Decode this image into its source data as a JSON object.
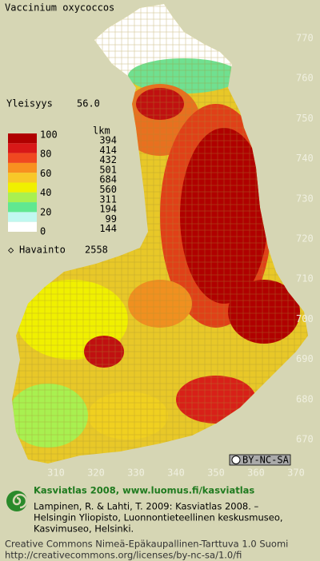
{
  "title": "Vaccinium oxycoccos",
  "frequency": {
    "label": "Yleisyys",
    "value": "56.0"
  },
  "legend": {
    "scale_labels": [
      100,
      80,
      60,
      40,
      20,
      0
    ],
    "count_header": "lkm",
    "counts": [
      394,
      414,
      432,
      501,
      684,
      560,
      311,
      194,
      99,
      144
    ]
  },
  "observations": {
    "label": "Havainto",
    "value": 2558
  },
  "grid_labels": {
    "north": [
      770,
      760,
      750,
      740,
      730,
      720,
      710,
      700,
      690,
      680,
      670
    ],
    "east": [
      310,
      320,
      330,
      340,
      350,
      360,
      370
    ]
  },
  "license_badge": "BY-NC-SA",
  "footer": {
    "heading": "Kasviatlas 2008, www.luomus.fi/kasviatlas",
    "citation": [
      "Lampinen, R. & Lahti, T. 2009: Kasviatlas 2008. –",
      "Helsingin Yliopisto, Luonnontieteellinen keskusmuseo,",
      "Kasvimuseo, Helsinki."
    ],
    "license": [
      "Creative Commons Nimeä-Epäkaupallinen-Tarttuva 1.0 Suomi",
      "http://creativecommons.org/licenses/by-nc-sa/1.0/fi"
    ]
  }
}
